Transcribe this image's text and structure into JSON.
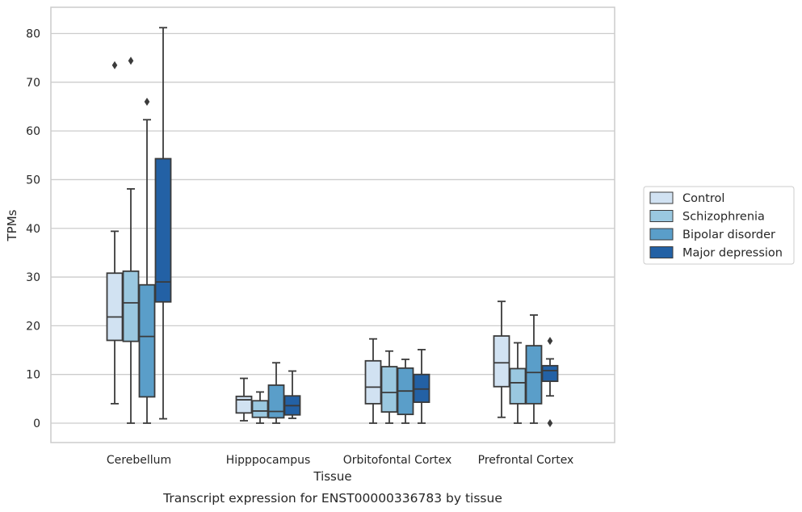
{
  "chart_data": {
    "type": "boxplot",
    "caption": "Transcript expression for ENST00000336783 by tissue",
    "xlabel": "Tissue",
    "ylabel": "TPMs",
    "ylim": [
      -4,
      85
    ],
    "yticks": [
      0,
      10,
      20,
      30,
      40,
      50,
      60,
      70,
      80
    ],
    "grid": true,
    "legend_position": "right",
    "categories": [
      "Cerebellum",
      "Hipppocampus",
      "Orbitofontal Cortex",
      "Prefrontal Cortex"
    ],
    "series": [
      {
        "name": "Control",
        "color": "#d1e2f2",
        "boxes": [
          {
            "whislo": 4,
            "q1": 17,
            "med": 21.8,
            "q3": 30.8,
            "whishi": 39.4,
            "fliers": [
              73.5
            ]
          },
          {
            "whislo": 0.5,
            "q1": 2.1,
            "med": 4.8,
            "q3": 5.5,
            "whishi": 9.2,
            "fliers": []
          },
          {
            "whislo": 0,
            "q1": 4,
            "med": 7.4,
            "q3": 12.8,
            "whishi": 17.3,
            "fliers": []
          },
          {
            "whislo": 1.2,
            "q1": 7.5,
            "med": 12.4,
            "q3": 17.9,
            "whishi": 25,
            "fliers": []
          }
        ]
      },
      {
        "name": "Schizophrenia",
        "color": "#9ac8e0",
        "boxes": [
          {
            "whislo": 0,
            "q1": 16.8,
            "med": 24.7,
            "q3": 31.2,
            "whishi": 48.1,
            "fliers": [
              74.4
            ]
          },
          {
            "whislo": 0,
            "q1": 1.2,
            "med": 2.5,
            "q3": 4.6,
            "whishi": 6.4,
            "fliers": []
          },
          {
            "whislo": 0,
            "q1": 2.3,
            "med": 6.3,
            "q3": 11.6,
            "whishi": 14.8,
            "fliers": []
          },
          {
            "whislo": 0,
            "q1": 4,
            "med": 8.3,
            "q3": 11.2,
            "whishi": 16.5,
            "fliers": []
          }
        ]
      },
      {
        "name": "Bipolar disorder",
        "color": "#5a9ec9",
        "boxes": [
          {
            "whislo": 0,
            "q1": 5.4,
            "med": 17.8,
            "q3": 28.4,
            "whishi": 62.3,
            "fliers": [
              66
            ]
          },
          {
            "whislo": 0,
            "q1": 1.1,
            "med": 2.4,
            "q3": 7.8,
            "whishi": 12.4,
            "fliers": []
          },
          {
            "whislo": 0,
            "q1": 1.8,
            "med": 6.6,
            "q3": 11.3,
            "whishi": 13.1,
            "fliers": []
          },
          {
            "whislo": 0,
            "q1": 4,
            "med": 10.4,
            "q3": 15.9,
            "whishi": 22.2,
            "fliers": []
          }
        ]
      },
      {
        "name": "Major depression",
        "color": "#2361a5",
        "boxes": [
          {
            "whislo": 0.9,
            "q1": 24.9,
            "med": 29,
            "q3": 54.3,
            "whishi": 81.2,
            "fliers": []
          },
          {
            "whislo": 1,
            "q1": 1.7,
            "med": 3.6,
            "q3": 5.6,
            "whishi": 10.7,
            "fliers": []
          },
          {
            "whislo": 0,
            "q1": 4.3,
            "med": 7,
            "q3": 10,
            "whishi": 15.1,
            "fliers": []
          },
          {
            "whislo": 5.6,
            "q1": 8.6,
            "med": 10.8,
            "q3": 11.8,
            "whishi": 13.2,
            "fliers": [
              16.9,
              0
            ]
          }
        ]
      }
    ]
  }
}
